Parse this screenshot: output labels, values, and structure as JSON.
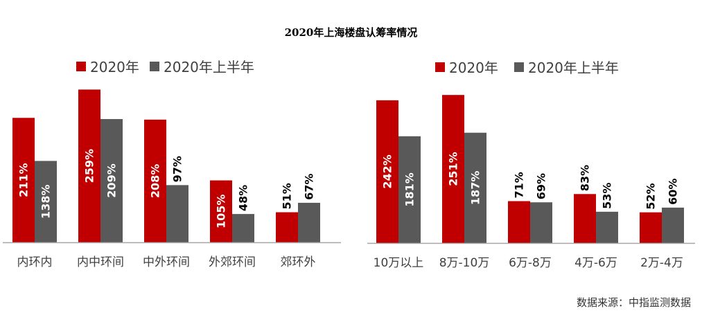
{
  "title": "2020年上海楼盘认筹率情况",
  "source": "数据来源：中指监测数据",
  "colors": {
    "series_2020": "#C00000",
    "series_h1": "#595959",
    "axis": "#A6A6A6"
  },
  "chart_data": [
    {
      "type": "bar",
      "categories": [
        "内环内",
        "内中环间",
        "中外环间",
        "外郊环间",
        "郊环外"
      ],
      "series": [
        {
          "name": "2020年",
          "values": [
            211,
            259,
            208,
            105,
            51
          ],
          "labels": [
            "211%",
            "259%",
            "208%",
            "105%",
            "51%"
          ]
        },
        {
          "name": "2020年上半年",
          "values": [
            138,
            209,
            97,
            48,
            67
          ],
          "labels": [
            "138%",
            "209%",
            "97%",
            "48%",
            "67%"
          ]
        }
      ],
      "legend": "top",
      "ylim": [
        0,
        270
      ]
    },
    {
      "type": "bar",
      "categories": [
        "10万以上",
        "8万-10万",
        "6万-8万",
        "4万-6万",
        "2万-4万"
      ],
      "series": [
        {
          "name": "2020年",
          "values": [
            242,
            251,
            71,
            83,
            52
          ],
          "labels": [
            "242%",
            "251%",
            "71%",
            "83%",
            "52%"
          ]
        },
        {
          "name": "2020年上半年",
          "values": [
            181,
            187,
            69,
            53,
            60
          ],
          "labels": [
            "181%",
            "187%",
            "69%",
            "53%",
            "60%"
          ]
        }
      ],
      "legend": "top",
      "ylim": [
        0,
        270
      ]
    }
  ]
}
